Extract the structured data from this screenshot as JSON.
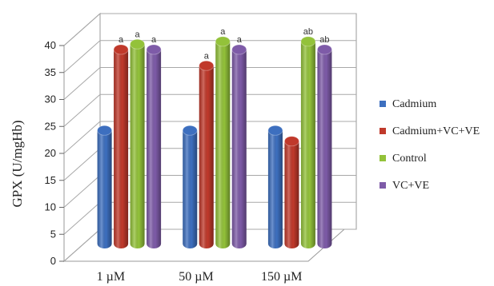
{
  "chart_data": {
    "type": "bar",
    "ylabel": "GPX (U/mgHb)",
    "xlabel": "",
    "ylim": [
      0,
      40
    ],
    "yticks": [
      "0",
      "5",
      "10",
      "15",
      "20",
      "25",
      "30",
      "35",
      "40"
    ],
    "categories": [
      "1 µM",
      "50 µM",
      "150 µM"
    ],
    "grid": true,
    "legend_position": "right",
    "series": [
      {
        "name": "Cadmium",
        "color": "#3d6fbf",
        "values": [
          21,
          21,
          21
        ],
        "labels": [
          "",
          "",
          ""
        ]
      },
      {
        "name": "Cadmium+VC+VE",
        "color": "#c0392b",
        "values": [
          36,
          33,
          19
        ],
        "labels": [
          "a",
          "a",
          ""
        ]
      },
      {
        "name": "Control",
        "color": "#93c23a",
        "values": [
          37,
          37.5,
          37.5
        ],
        "labels": [
          "a",
          "a",
          "ab"
        ]
      },
      {
        "name": "VC+VE",
        "color": "#7e5ba8",
        "values": [
          36,
          36,
          36
        ],
        "labels": [
          "a",
          "a",
          "ab"
        ]
      }
    ]
  }
}
